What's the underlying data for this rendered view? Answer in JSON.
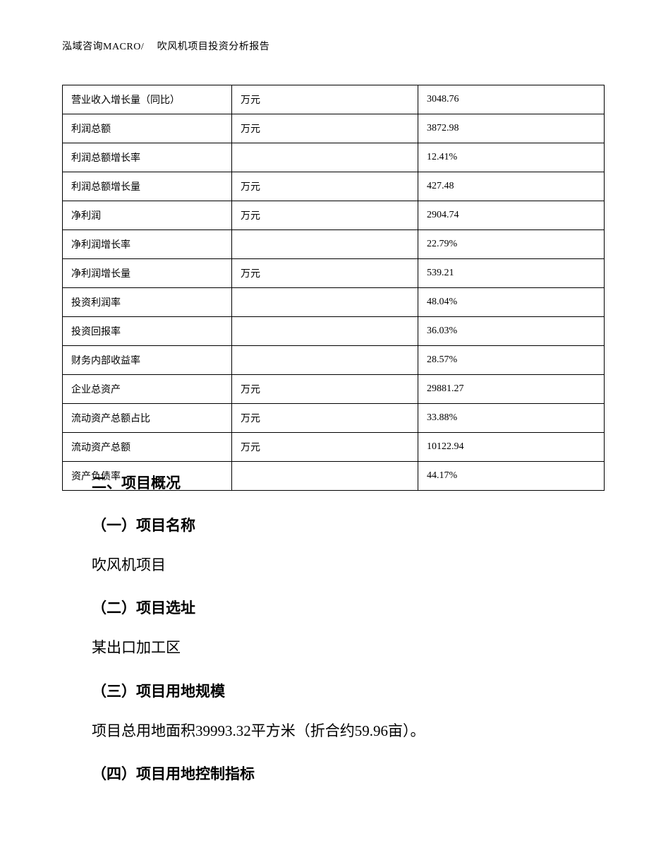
{
  "header": {
    "text": "泓域咨询MACRO/　 吹风机项目投资分析报告"
  },
  "table": {
    "rows": [
      {
        "label": "营业收入增长量（同比）",
        "unit": "万元",
        "value": "3048.76"
      },
      {
        "label": "利润总额",
        "unit": "万元",
        "value": "3872.98"
      },
      {
        "label": "利润总额增长率",
        "unit": "",
        "value": "12.41%"
      },
      {
        "label": "利润总额增长量",
        "unit": "万元",
        "value": "427.48"
      },
      {
        "label": "净利润",
        "unit": "万元",
        "value": "2904.74"
      },
      {
        "label": "净利润增长率",
        "unit": "",
        "value": "22.79%"
      },
      {
        "label": "净利润增长量",
        "unit": "万元",
        "value": "539.21"
      },
      {
        "label": "投资利润率",
        "unit": "",
        "value": "48.04%"
      },
      {
        "label": "投资回报率",
        "unit": "",
        "value": "36.03%"
      },
      {
        "label": "财务内部收益率",
        "unit": "",
        "value": "28.57%"
      },
      {
        "label": "企业总资产",
        "unit": "万元",
        "value": "29881.27"
      },
      {
        "label": "流动资产总额占比",
        "unit": "万元",
        "value": "33.88%"
      },
      {
        "label": "流动资产总额",
        "unit": "万元",
        "value": "10122.94"
      },
      {
        "label": "资产负债率",
        "unit": "",
        "value": "44.17%"
      }
    ]
  },
  "sections": {
    "main_title": "二、项目概况",
    "sub1_title": "（一）项目名称",
    "sub1_text": "吹风机项目",
    "sub2_title": "（二）项目选址",
    "sub2_text": "某出口加工区",
    "sub3_title": "（三）项目用地规模",
    "sub3_text": "项目总用地面积39993.32平方米（折合约59.96亩）。",
    "sub4_title": "（四）项目用地控制指标"
  }
}
